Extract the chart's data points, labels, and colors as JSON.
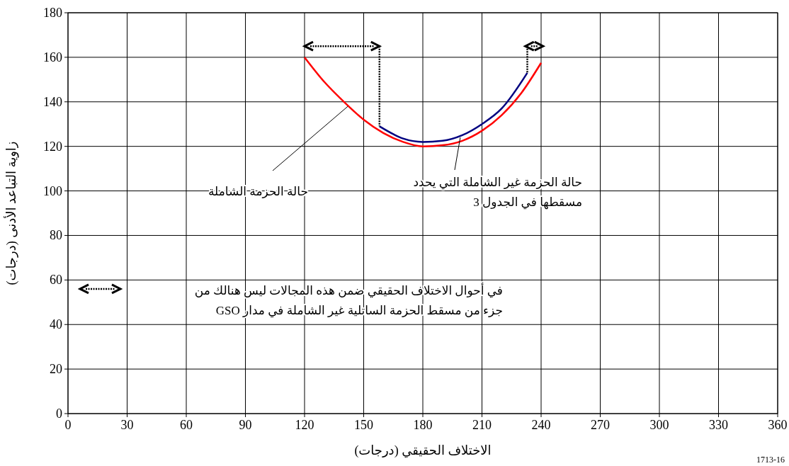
{
  "chart_data": {
    "type": "line",
    "xlabel": "الاختلاف الحقيقي (درجات)",
    "ylabel": "زاوية التباعد الأدنى (درجات)",
    "xlim": [
      0,
      360
    ],
    "xticks": [
      0,
      30,
      60,
      90,
      120,
      150,
      180,
      210,
      240,
      270,
      300,
      330,
      360
    ],
    "ylim": [
      0,
      180
    ],
    "yticks": [
      0,
      20,
      40,
      60,
      80,
      100,
      120,
      140,
      160,
      180
    ],
    "grid": true,
    "marker": "none",
    "line_style": "solid",
    "series": [
      {
        "color": "#ff0000",
        "x": [
          120,
          130,
          140,
          150,
          160,
          170,
          180,
          190,
          200,
          210,
          220,
          230,
          240
        ],
        "values": [
          160,
          149,
          140,
          132,
          126,
          122,
          120,
          120.5,
          122.5,
          127,
          134,
          144,
          157.5
        ]
      },
      {
        "color": "#000080",
        "x": [
          158,
          165,
          170,
          180,
          190,
          200,
          210,
          220,
          233
        ],
        "values": [
          129,
          125.5,
          123.5,
          122,
          122.5,
          125,
          130,
          137,
          153
        ]
      }
    ],
    "annotations": [
      {
        "text": "حالة الحزمة الشاملة",
        "x": 142,
        "y": 138
      },
      {
        "text": "حالة الحزمة غير الشاملة التي يحدد\nمسقطها في الجدول 3",
        "x": 199,
        "y": 124
      },
      "في أحوال الاختلاف الحقيقي ضمن هذه المجالات ليس هنالك من\nجزء من مسقط الحزمة الساتلية غير الشاملة في مدار GSO",
      "1713-16"
    ]
  }
}
